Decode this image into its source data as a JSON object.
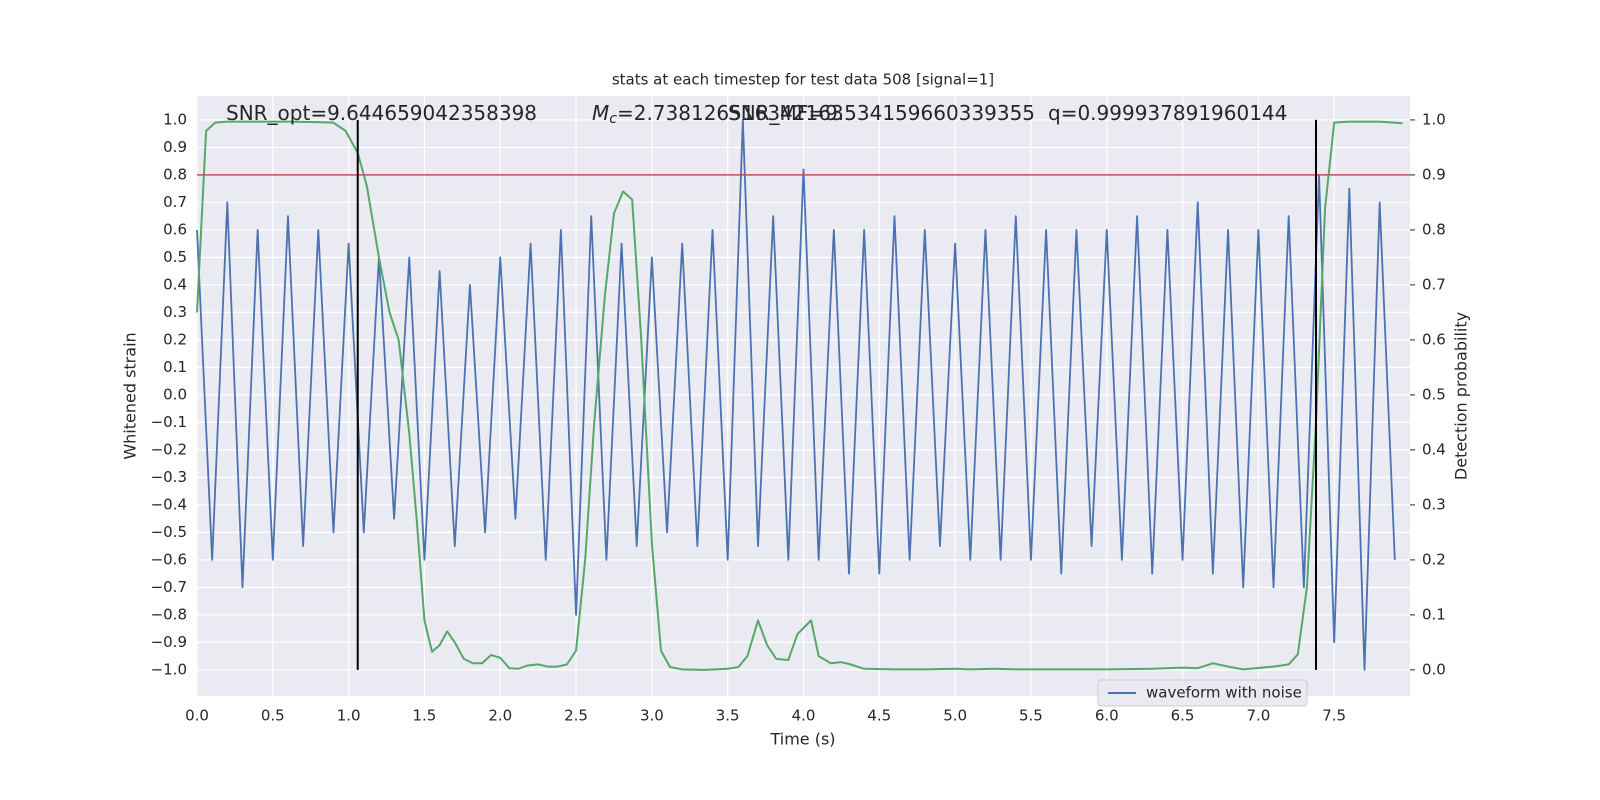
{
  "chart_data": {
    "type": "line",
    "title": "stats at each timestep for test data 508 [signal=1]",
    "xlabel": "Time (s)",
    "ylabel": "Whitened strain",
    "y2label": "Detection probability",
    "xlim": [
      0,
      8.0
    ],
    "ylim": [
      -1.095,
      1.087
    ],
    "y2lim": [
      -0.0475,
      1.0435
    ],
    "xticks": [
      {
        "value": 0,
        "label": "0.0"
      },
      {
        "value": 0.5,
        "label": "0.5"
      },
      {
        "value": 1,
        "label": "1.0"
      },
      {
        "value": 1.5,
        "label": "1.5"
      },
      {
        "value": 2,
        "label": "2.0"
      },
      {
        "value": 2.5,
        "label": "2.5"
      },
      {
        "value": 3,
        "label": "3.0"
      },
      {
        "value": 3.5,
        "label": "3.5"
      },
      {
        "value": 4,
        "label": "4.0"
      },
      {
        "value": 4.5,
        "label": "4.5"
      },
      {
        "value": 5,
        "label": "5.0"
      },
      {
        "value": 5.5,
        "label": "5.5"
      },
      {
        "value": 6,
        "label": "6.0"
      },
      {
        "value": 6.5,
        "label": "6.5"
      },
      {
        "value": 7,
        "label": "7.0"
      },
      {
        "value": 7.5,
        "label": "7.5"
      }
    ],
    "yticks": [
      {
        "value": 1,
        "label": "1.0"
      },
      {
        "value": 0.9,
        "label": "0.9"
      },
      {
        "value": 0.8,
        "label": "0.8"
      },
      {
        "value": 0.7,
        "label": "0.7"
      },
      {
        "value": 0.6,
        "label": "0.6"
      },
      {
        "value": 0.5,
        "label": "0.5"
      },
      {
        "value": 0.4,
        "label": "0.4"
      },
      {
        "value": 0.3,
        "label": "0.3"
      },
      {
        "value": 0.2,
        "label": "0.2"
      },
      {
        "value": 0.1,
        "label": "0.1"
      },
      {
        "value": 0,
        "label": "0.0"
      },
      {
        "value": -0.1,
        "label": "−0.1"
      },
      {
        "value": -0.2,
        "label": "−0.2"
      },
      {
        "value": -0.3,
        "label": "−0.3"
      },
      {
        "value": -0.4,
        "label": "−0.4"
      },
      {
        "value": -0.5,
        "label": "−0.5"
      },
      {
        "value": -0.6,
        "label": "−0.6"
      },
      {
        "value": -0.7,
        "label": "−0.7"
      },
      {
        "value": -0.8,
        "label": "−0.8"
      },
      {
        "value": -0.9,
        "label": "−0.9"
      },
      {
        "value": -1,
        "label": "−1.0"
      }
    ],
    "y2ticks": [
      {
        "value": 0,
        "label": "0.0"
      },
      {
        "value": 0.1,
        "label": "0.1"
      },
      {
        "value": 0.2,
        "label": "0.2"
      },
      {
        "value": 0.3,
        "label": "0.3"
      },
      {
        "value": 0.4,
        "label": "0.4"
      },
      {
        "value": 0.5,
        "label": "0.5"
      },
      {
        "value": 0.6,
        "label": "0.6"
      },
      {
        "value": 0.7,
        "label": "0.7"
      },
      {
        "value": 0.8,
        "label": "0.8"
      },
      {
        "value": 0.9,
        "label": "0.9"
      },
      {
        "value": 1,
        "label": "1.0"
      }
    ],
    "grid": true,
    "legend": "lower right",
    "background": "#eaeaf2",
    "series": [
      {
        "name": "waveform with noise",
        "color": "#4c72b0",
        "x": [
          0.0,
          0.1,
          0.2,
          0.3,
          0.4,
          0.5,
          0.6,
          0.7,
          0.8,
          0.9,
          1.0,
          1.1,
          1.2,
          1.3,
          1.4,
          1.5,
          1.6,
          1.7,
          1.8,
          1.9,
          2.0,
          2.1,
          2.2,
          2.3,
          2.4,
          2.5,
          2.6,
          2.7,
          2.8,
          2.9,
          3.0,
          3.1,
          3.2,
          3.3,
          3.4,
          3.5,
          3.6,
          3.7,
          3.8,
          3.9,
          4.0,
          4.1,
          4.2,
          4.3,
          4.4,
          4.5,
          4.6,
          4.7,
          4.8,
          4.9,
          5.0,
          5.1,
          5.2,
          5.3,
          5.4,
          5.5,
          5.6,
          5.7,
          5.8,
          5.9,
          6.0,
          6.1,
          6.2,
          6.3,
          6.4,
          6.5,
          6.6,
          6.7,
          6.8,
          6.9,
          7.0,
          7.1,
          7.2,
          7.3,
          7.4,
          7.5,
          7.6,
          7.7,
          7.8,
          7.9
        ],
        "values": [
          0.6,
          -0.6,
          0.7,
          -0.7,
          0.6,
          -0.6,
          0.65,
          -0.55,
          0.6,
          -0.5,
          0.55,
          -0.5,
          0.5,
          -0.45,
          0.5,
          -0.6,
          0.45,
          -0.55,
          0.4,
          -0.5,
          0.5,
          -0.45,
          0.55,
          -0.6,
          0.6,
          -0.8,
          0.65,
          -0.6,
          0.55,
          -0.55,
          0.5,
          -0.5,
          0.55,
          -0.55,
          0.6,
          -0.6,
          1.0,
          -0.55,
          0.65,
          -0.6,
          0.82,
          -0.6,
          0.6,
          -0.65,
          0.6,
          -0.65,
          0.65,
          -0.6,
          0.6,
          -0.55,
          0.55,
          -0.6,
          0.6,
          -0.6,
          0.65,
          -0.6,
          0.6,
          -0.65,
          0.6,
          -0.55,
          0.6,
          -0.6,
          0.65,
          -0.65,
          0.6,
          -0.6,
          0.7,
          -0.65,
          0.6,
          -0.7,
          0.6,
          -0.7,
          0.65,
          -0.7,
          0.8,
          -0.9,
          0.75,
          -1.0,
          0.7,
          -0.6
        ]
      },
      {
        "color": "#55a868",
        "axis": "y2",
        "x": [
          0.0,
          0.06,
          0.12,
          0.2,
          0.4,
          0.6,
          0.8,
          0.9,
          0.98,
          1.06,
          1.12,
          1.2,
          1.27,
          1.33,
          1.4,
          1.45,
          1.5,
          1.55,
          1.6,
          1.65,
          1.7,
          1.76,
          1.82,
          1.88,
          1.94,
          2.0,
          2.06,
          2.12,
          2.18,
          2.25,
          2.31,
          2.38,
          2.44,
          2.5,
          2.56,
          2.62,
          2.69,
          2.75,
          2.81,
          2.87,
          2.93,
          3.0,
          3.06,
          3.12,
          3.2,
          3.35,
          3.5,
          3.57,
          3.63,
          3.7,
          3.76,
          3.82,
          3.9,
          3.96,
          4.05,
          4.1,
          4.18,
          4.25,
          4.31,
          4.4,
          4.6,
          4.8,
          5.0,
          5.1,
          5.25,
          5.4,
          6.0,
          6.3,
          6.5,
          6.6,
          6.7,
          6.8,
          6.9,
          7.1,
          7.2,
          7.26,
          7.32,
          7.38,
          7.44,
          7.5,
          7.6,
          7.8,
          7.95
        ],
        "values": [
          0.65,
          0.98,
          0.995,
          0.997,
          0.997,
          0.997,
          0.996,
          0.995,
          0.98,
          0.94,
          0.88,
          0.75,
          0.65,
          0.6,
          0.43,
          0.27,
          0.09,
          0.033,
          0.045,
          0.07,
          0.05,
          0.02,
          0.012,
          0.012,
          0.027,
          0.022,
          0.003,
          0.002,
          0.008,
          0.01,
          0.006,
          0.006,
          0.01,
          0.035,
          0.2,
          0.45,
          0.68,
          0.83,
          0.87,
          0.855,
          0.6,
          0.23,
          0.035,
          0.005,
          0.001,
          0.0,
          0.002,
          0.005,
          0.025,
          0.09,
          0.045,
          0.02,
          0.018,
          0.065,
          0.09,
          0.025,
          0.012,
          0.014,
          0.01,
          0.002,
          0.001,
          0.001,
          0.002,
          0.001,
          0.002,
          0.001,
          0.001,
          0.002,
          0.004,
          0.003,
          0.012,
          0.006,
          0.001,
          0.006,
          0.01,
          0.028,
          0.15,
          0.45,
          0.84,
          0.995,
          0.997,
          0.997,
          0.994
        ]
      }
    ],
    "threshold": {
      "value": 0.9,
      "axis": "y2",
      "color": "#c44e52"
    },
    "vlines": {
      "x": [
        1.06,
        7.38
      ],
      "ymin": -1,
      "ymax": 1,
      "color": "#000000"
    },
    "annotations": [
      {
        "text": "SNR_opt=9.644659042358398"
      },
      {
        "symbol": "M",
        "subscript": "c",
        "text": "=2.738126516342163"
      },
      {
        "text": "SNR_MF=9.534159660339355"
      },
      {
        "text": "q=0.999937891960144"
      }
    ]
  }
}
